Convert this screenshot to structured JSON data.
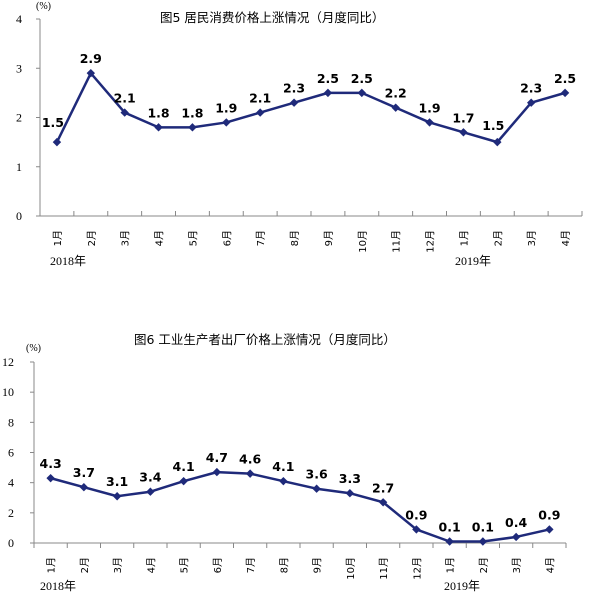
{
  "chart_data": [
    {
      "type": "line",
      "title": "图5   居民消费价格上涨情况（月度同比）",
      "unit": "(%)",
      "categories": [
        "1月",
        "2月",
        "3月",
        "4月",
        "5月",
        "6月",
        "7月",
        "8月",
        "9月",
        "10月",
        "11月",
        "12月",
        "1月",
        "2月",
        "3月",
        "4月"
      ],
      "year_labels": [
        "2018年",
        "2019年"
      ],
      "series": [
        {
          "values": [
            1.5,
            2.9,
            2.1,
            1.8,
            1.8,
            1.9,
            2.1,
            2.3,
            2.5,
            2.5,
            2.2,
            1.9,
            1.7,
            1.5,
            2.3,
            2.5
          ]
        }
      ],
      "data_labels": [
        "1.5",
        "2.9",
        "2.1",
        "1.8",
        "1.8",
        "1.9",
        "2.1",
        "2.3",
        "2.5",
        "2.5",
        "2.2",
        "1.9",
        "1.7",
        "1.5",
        "2.3",
        "2.5"
      ],
      "ylim": [
        0,
        4
      ],
      "yticks": [
        "0",
        "1",
        "2",
        "3",
        "4"
      ],
      "grid": false,
      "color": "#1f2a7a"
    },
    {
      "type": "line",
      "title": "图6   工业生产者出厂价格上涨情况（月度同比）",
      "unit": "(%)",
      "categories": [
        "1月",
        "2月",
        "3月",
        "4月",
        "5月",
        "6月",
        "7月",
        "8月",
        "9月",
        "10月",
        "11月",
        "12月",
        "1月",
        "2月",
        "3月",
        "4月"
      ],
      "year_labels": [
        "2018年",
        "2019年"
      ],
      "series": [
        {
          "values": [
            4.3,
            3.7,
            3.1,
            3.4,
            4.1,
            4.7,
            4.6,
            4.1,
            3.6,
            3.3,
            2.7,
            0.9,
            0.1,
            0.1,
            0.4,
            0.9
          ]
        }
      ],
      "data_labels": [
        "4.3",
        "3.7",
        "3.1",
        "3.4",
        "4.1",
        "4.7",
        "4.6",
        "4.1",
        "3.6",
        "3.3",
        "2.7",
        "0.9",
        "0.1",
        "0.1",
        "0.4",
        "0.9"
      ],
      "ylim": [
        0,
        12
      ],
      "yticks": [
        "0",
        "2",
        "4",
        "6",
        "8",
        "10",
        "12"
      ],
      "grid": false,
      "color": "#1f2a7a"
    }
  ]
}
